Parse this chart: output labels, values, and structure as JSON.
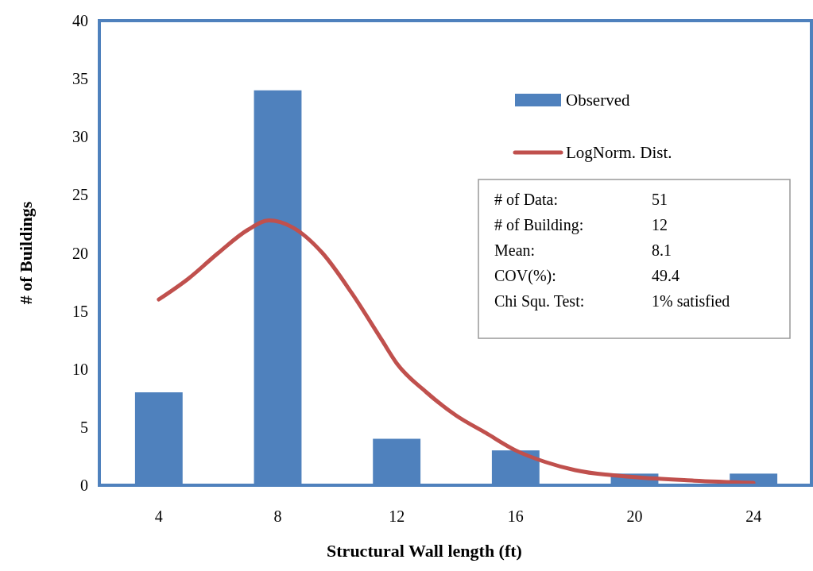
{
  "chart_data": {
    "type": "bar",
    "xlabel": "Structural Wall length (ft)",
    "ylabel": "# of Buildings",
    "x": [
      4,
      8,
      12,
      16,
      20,
      24
    ],
    "xlim": [
      2,
      26
    ],
    "xticks": [
      4,
      8,
      12,
      16,
      20,
      24
    ],
    "ylim": [
      0,
      40
    ],
    "yticks": [
      0,
      5,
      10,
      15,
      20,
      25,
      30,
      35,
      40
    ],
    "series": [
      {
        "name": "Observed",
        "color": "#4f81bd",
        "values": [
          8,
          34,
          4,
          3,
          1,
          1
        ]
      },
      {
        "name": "LogNorm. Dist.",
        "type": "line",
        "color": "#c0504d",
        "x": [
          4,
          5,
          6,
          7,
          7.7,
          8.5,
          9.5,
          10.5,
          11.5,
          12,
          13,
          14,
          15,
          16,
          17,
          18,
          20,
          22,
          24
        ],
        "values": [
          16,
          17.8,
          20,
          22,
          22.8,
          22.2,
          20,
          16.5,
          12.5,
          10.5,
          8,
          6,
          4.5,
          3,
          2,
          1.3,
          0.7,
          0.4,
          0.2
        ]
      }
    ],
    "legend": "top right",
    "grid": false,
    "annotations": [
      "# of Data:",
      "51",
      "# of Building:",
      "12",
      "Mean:",
      "8.1",
      "COV(%):",
      "49.4",
      "Chi Squ. Test:",
      "1% satisfied"
    ]
  }
}
